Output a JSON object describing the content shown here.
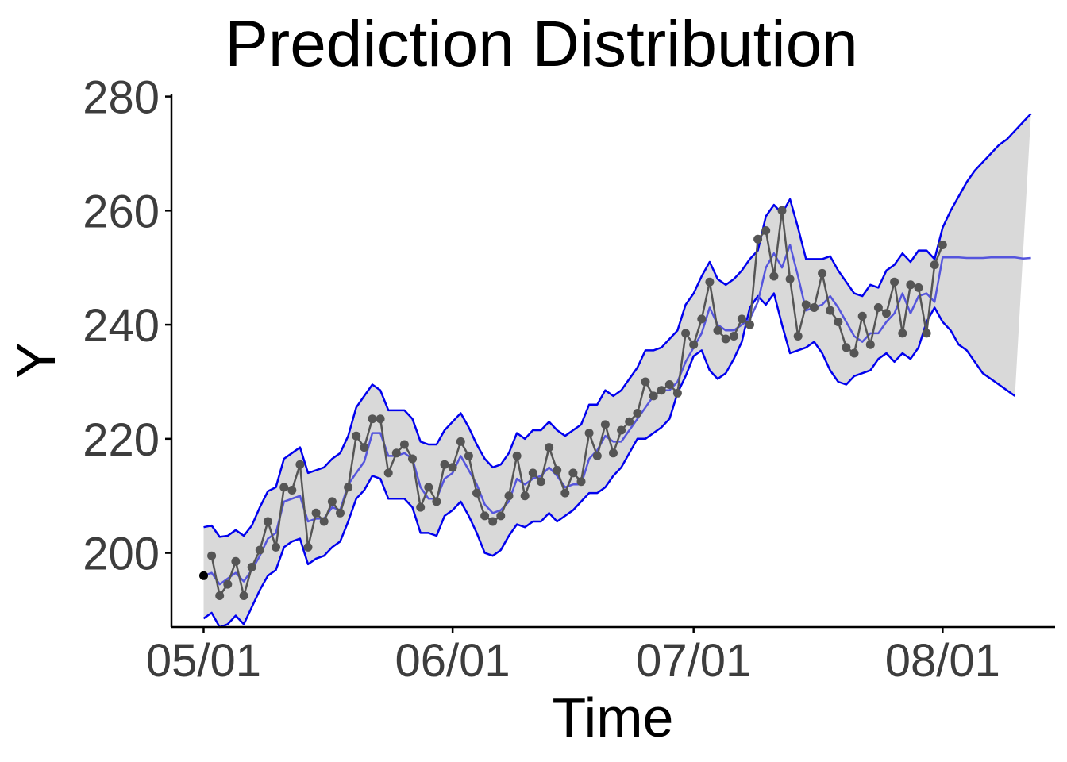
{
  "chart_data": {
    "type": "line",
    "title": "Prediction Distribution",
    "xlabel": "Time",
    "ylabel": "Y",
    "x_ticks": [
      "05/01",
      "06/01",
      "07/01",
      "08/01"
    ],
    "y_ticks": [
      200,
      220,
      240,
      260,
      280
    ],
    "ylim": [
      187,
      280.5
    ],
    "xlim": [
      "2016-04-27",
      "2016-08-15"
    ],
    "grid": false,
    "legend": "none",
    "colors": {
      "band_fill": "#d9d9d9",
      "bound_lines": "#0000ee",
      "prediction_mean": "#5555dd",
      "observed": "#555555",
      "initial_point": "#000000"
    },
    "start_date": "2016-05-01",
    "initial_point": {
      "x": "2016-05-01",
      "y": 196
    },
    "series": [
      {
        "role": "observed",
        "values": [
          199.5,
          192.5,
          194.5,
          198.5,
          192.5,
          197.5,
          200.5,
          205.5,
          201,
          211.5,
          211,
          215.5,
          201,
          207,
          205.5,
          209,
          207,
          211.5,
          220.5,
          218.5,
          223.5,
          223.5,
          214,
          217.5,
          219,
          216.5,
          208,
          211.5,
          209,
          215.5,
          215,
          219.5,
          217,
          210.5,
          206.5,
          205.5,
          206.5,
          210,
          217,
          210,
          214,
          212.5,
          218.5,
          214.5,
          210.5,
          214,
          212.5,
          221,
          217,
          222.5,
          217.5,
          221.5,
          223,
          224.5,
          230,
          227.5,
          228.5,
          229.5,
          228,
          238.5,
          236.5,
          241,
          247.5,
          239,
          237.5,
          238,
          241,
          240,
          255,
          256.5,
          248.5,
          260,
          248,
          238,
          243.5,
          243,
          249,
          242.5,
          240.5,
          236,
          235,
          241.5,
          236.5,
          243,
          242,
          247.5,
          238.5,
          247,
          246.5,
          238.5,
          250.5,
          254
        ]
      },
      {
        "role": "prediction-mean",
        "values": [
          196,
          196.5,
          194.5,
          195.5,
          196.5,
          195,
          197,
          199.5,
          202.5,
          203.5,
          209,
          209.5,
          210,
          205.5,
          206,
          206,
          208,
          207.5,
          212,
          214,
          216,
          221,
          221,
          217,
          217,
          217.5,
          216.5,
          211.5,
          209.5,
          209.5,
          213,
          214,
          217,
          214.5,
          212,
          208.5,
          207,
          207.5,
          209,
          213,
          212,
          213,
          213.5,
          215,
          213.5,
          211.5,
          212,
          212,
          216.5,
          218,
          220.5,
          219.5,
          219.5,
          221.5,
          223.5,
          225.5,
          227.5,
          228.5,
          228.5,
          230,
          233.5,
          236,
          238.5,
          243,
          240,
          239,
          239,
          240,
          241,
          244,
          250,
          252.5,
          250,
          254,
          248.5,
          242.5,
          243,
          243.5,
          245,
          243,
          240.5,
          238,
          237,
          238.5,
          238.5,
          240.5,
          242,
          245.5,
          242,
          245,
          245.5,
          244,
          251.8,
          251.8,
          251.8,
          251.7,
          251.7,
          251.7,
          251.8,
          251.8,
          251.8,
          251.8,
          251.6,
          251.7
        ]
      },
      {
        "role": "upper-bound",
        "values": [
          204.5,
          204.8,
          202.8,
          203,
          204,
          203,
          204.8,
          208,
          210.8,
          211.5,
          216.5,
          217.5,
          218.5,
          214,
          214.5,
          215,
          216.5,
          217.5,
          220.5,
          225.5,
          227.5,
          229.5,
          228.5,
          225,
          225,
          225,
          223.5,
          219.5,
          219,
          219,
          221.5,
          223,
          224.5,
          222,
          219,
          216.5,
          215,
          215.5,
          217.5,
          221,
          220,
          221.5,
          221.5,
          223,
          221.5,
          220.5,
          221.5,
          222.5,
          226,
          226,
          228.5,
          227.5,
          228.5,
          230.5,
          232.5,
          235.5,
          235.5,
          236,
          237.5,
          239,
          243.5,
          245.5,
          248.5,
          251,
          248,
          247,
          248,
          249.5,
          251.5,
          253,
          259,
          261,
          259.5,
          262,
          257,
          251.5,
          251.5,
          251.5,
          252,
          249.5,
          247.5,
          245.5,
          245,
          247,
          246.5,
          249.5,
          250.5,
          252.5,
          251,
          253,
          253,
          251.5,
          257,
          260,
          262.5,
          265,
          267,
          268.5,
          270,
          271.5,
          272.5,
          274,
          275.5,
          277
        ]
      },
      {
        "role": "lower-bound",
        "values": [
          188.5,
          189.5,
          187,
          187.5,
          189,
          187.5,
          190.5,
          193.5,
          196,
          197,
          201,
          202,
          202.5,
          198,
          199,
          199.5,
          201,
          202,
          205.5,
          209.5,
          211,
          213.5,
          213,
          209.5,
          209.5,
          209.5,
          208,
          203.5,
          203.5,
          203,
          206.5,
          207.5,
          209,
          206.5,
          203.5,
          200,
          199.5,
          200.5,
          203,
          205,
          204.5,
          205.5,
          205.5,
          207,
          205.5,
          206.5,
          207.5,
          209,
          210.5,
          210.5,
          211.5,
          213.5,
          215,
          217.5,
          220,
          220,
          221,
          222,
          223.5,
          228,
          231,
          234.5,
          235.5,
          232,
          230.5,
          231.5,
          234,
          237,
          243,
          245,
          243.5,
          245.5,
          240,
          235,
          235.5,
          236,
          237,
          235,
          232,
          230,
          229.5,
          231,
          231.5,
          232,
          234,
          235,
          233.5,
          235,
          234,
          236,
          240.5,
          243,
          240.5,
          239,
          236.5,
          235.5,
          233.5,
          231.5,
          230.5,
          229.5,
          228.5,
          227.5
        ]
      }
    ]
  }
}
